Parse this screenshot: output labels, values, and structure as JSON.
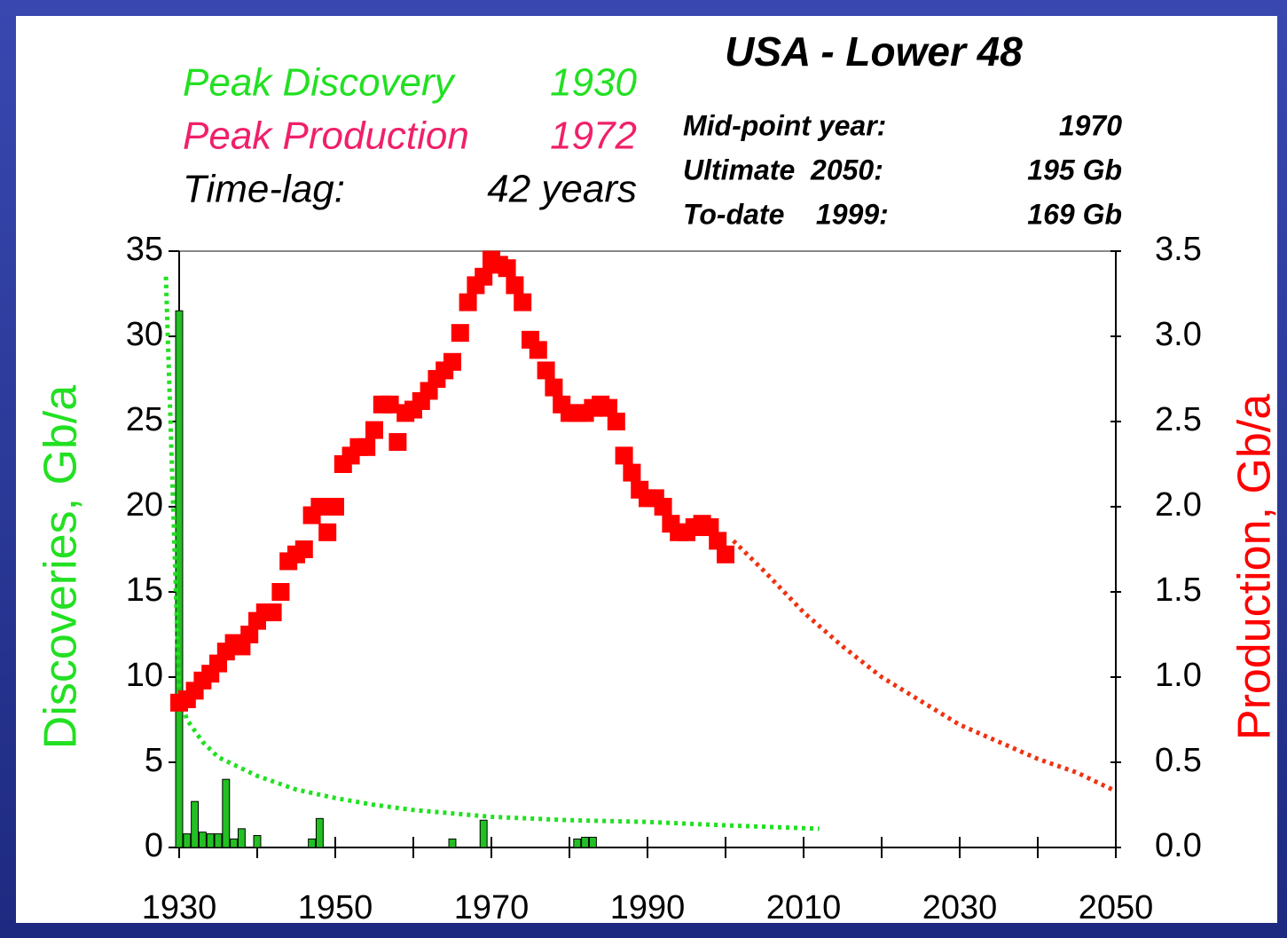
{
  "chart_data": {
    "type": "bar",
    "title": "USA - Lower 48",
    "annotations": [
      {
        "label": "Peak Discovery",
        "value": "1930",
        "color": "#22e022"
      },
      {
        "label": "Peak Production",
        "value": "1972",
        "color": "#f0206a"
      },
      {
        "label": "Time-lag:",
        "value": "42 years",
        "color": "#000000"
      }
    ],
    "notes": [
      {
        "label": "Mid-point year:",
        "value": "1970"
      },
      {
        "label": "Ultimate  2050:",
        "value": "195 Gb"
      },
      {
        "label": "To-date    1999:",
        "value": "169 Gb"
      }
    ],
    "y_label": "Discoveries, Gb/a",
    "y2_label": "Production, Gb/a",
    "y_label_color": "#22e022",
    "y2_label_color": "#ff0000",
    "xlim": [
      1930,
      2050
    ],
    "xticks": [
      1930,
      1950,
      1970,
      1990,
      2010,
      2030,
      2050
    ],
    "xminorticks": [
      1940,
      1960,
      1980,
      2000,
      2020,
      2040
    ],
    "ylim": [
      0,
      35
    ],
    "yticks": [
      0,
      5,
      10,
      15,
      20,
      25,
      30,
      35
    ],
    "y2lim": [
      0,
      3.5
    ],
    "y2ticks": [
      {
        "value": 0,
        "label": "0.0"
      },
      0.5,
      {
        "value": 1,
        "label": "1.0"
      },
      1.5,
      {
        "value": 2,
        "label": "2.0"
      },
      2.5,
      {
        "value": 3,
        "label": "3.0"
      },
      3.5
    ],
    "series": [
      {
        "type": "bar",
        "color": "#22c022",
        "x": [
          1930,
          1931,
          1932,
          1933,
          1934,
          1935,
          1936,
          1937,
          1938,
          1940,
          1947,
          1948,
          1965,
          1969,
          1981,
          1982,
          1983
        ],
        "values": [
          31.5,
          0.8,
          2.7,
          0.9,
          0.8,
          0.8,
          4.0,
          0.5,
          1.1,
          0.7,
          0.5,
          1.7,
          0.5,
          1.6,
          0.5,
          0.6,
          0.6
        ]
      },
      {
        "type": "line",
        "color": "#22e022",
        "x": [
          1928.3,
          1930,
          1931,
          1933,
          1935,
          1940,
          1945,
          1950,
          1955,
          1960,
          1965,
          1970,
          1980,
          1990,
          2000,
          2012
        ],
        "values": [
          33.5,
          9,
          7.5,
          6.2,
          5.3,
          4.2,
          3.4,
          2.9,
          2.5,
          2.2,
          2.0,
          1.8,
          1.6,
          1.5,
          1.3,
          1.1
        ]
      },
      {
        "type": "scatter",
        "axis": "y2",
        "color": "#ff0000",
        "x": [
          1930,
          1931,
          1932,
          1933,
          1934,
          1935,
          1936,
          1937,
          1938,
          1939,
          1940,
          1941,
          1942,
          1943,
          1944,
          1945,
          1946,
          1947,
          1948,
          1949,
          1950,
          1951,
          1952,
          1953,
          1954,
          1955,
          1956,
          1957,
          1958,
          1959,
          1960,
          1961,
          1962,
          1963,
          1964,
          1965,
          1966,
          1967,
          1968,
          1969,
          1970,
          1971,
          1972,
          1973,
          1974,
          1975,
          1976,
          1977,
          1978,
          1979,
          1980,
          1981,
          1982,
          1983,
          1984,
          1985,
          1986,
          1987,
          1988,
          1989,
          1990,
          1991,
          1992,
          1993,
          1994,
          1995,
          1996,
          1997,
          1998,
          1999,
          2000
        ],
        "values": [
          0.85,
          0.87,
          0.92,
          0.98,
          1.02,
          1.08,
          1.15,
          1.2,
          1.18,
          1.25,
          1.33,
          1.38,
          1.38,
          1.5,
          1.68,
          1.72,
          1.75,
          1.95,
          2.0,
          1.85,
          2.0,
          2.25,
          2.3,
          2.35,
          2.35,
          2.45,
          2.6,
          2.6,
          2.38,
          2.55,
          2.57,
          2.62,
          2.68,
          2.75,
          2.8,
          2.85,
          3.02,
          3.2,
          3.3,
          3.35,
          3.45,
          3.42,
          3.4,
          3.3,
          3.2,
          2.98,
          2.92,
          2.8,
          2.7,
          2.6,
          2.55,
          2.55,
          2.55,
          2.58,
          2.6,
          2.58,
          2.5,
          2.3,
          2.2,
          2.1,
          2.05,
          2.05,
          2.0,
          1.9,
          1.85,
          1.85,
          1.88,
          1.9,
          1.88,
          1.8,
          1.72
        ]
      },
      {
        "type": "line",
        "axis": "y2",
        "color": "#ee3311",
        "x": [
          2001,
          2005,
          2010,
          2015,
          2020,
          2025,
          2030,
          2035,
          2040,
          2045,
          2050
        ],
        "values": [
          1.8,
          1.62,
          1.38,
          1.18,
          1.0,
          0.86,
          0.72,
          0.62,
          0.52,
          0.44,
          0.33
        ]
      }
    ]
  }
}
